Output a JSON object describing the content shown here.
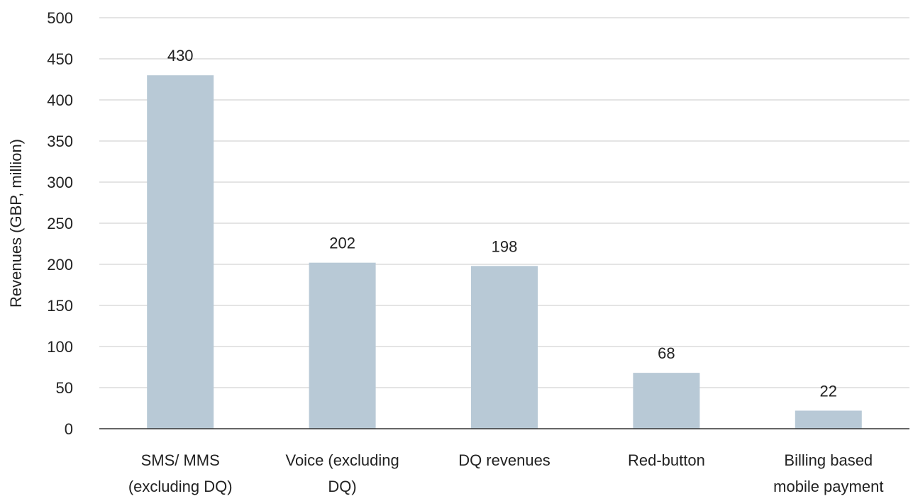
{
  "chart_data": {
    "type": "bar",
    "categories": [
      [
        "SMS/ MMS",
        "(excluding DQ)"
      ],
      [
        "Voice (excluding",
        "DQ)"
      ],
      [
        "DQ revenues"
      ],
      [
        "Red-button"
      ],
      [
        "Billing based",
        "mobile payment"
      ]
    ],
    "values": [
      430,
      202,
      198,
      68,
      22
    ],
    "data_labels": [
      "430",
      "202",
      "198",
      "68",
      "22"
    ],
    "ylabel": "Revenues (GBP, million)",
    "ylim": [
      0,
      500
    ],
    "yticks": [
      0,
      50,
      100,
      150,
      200,
      250,
      300,
      350,
      400,
      450,
      500
    ],
    "grid": true,
    "bar_color": "#b8c9d6",
    "grid_color": "#c8c8c8",
    "axis_color": "#333333"
  }
}
